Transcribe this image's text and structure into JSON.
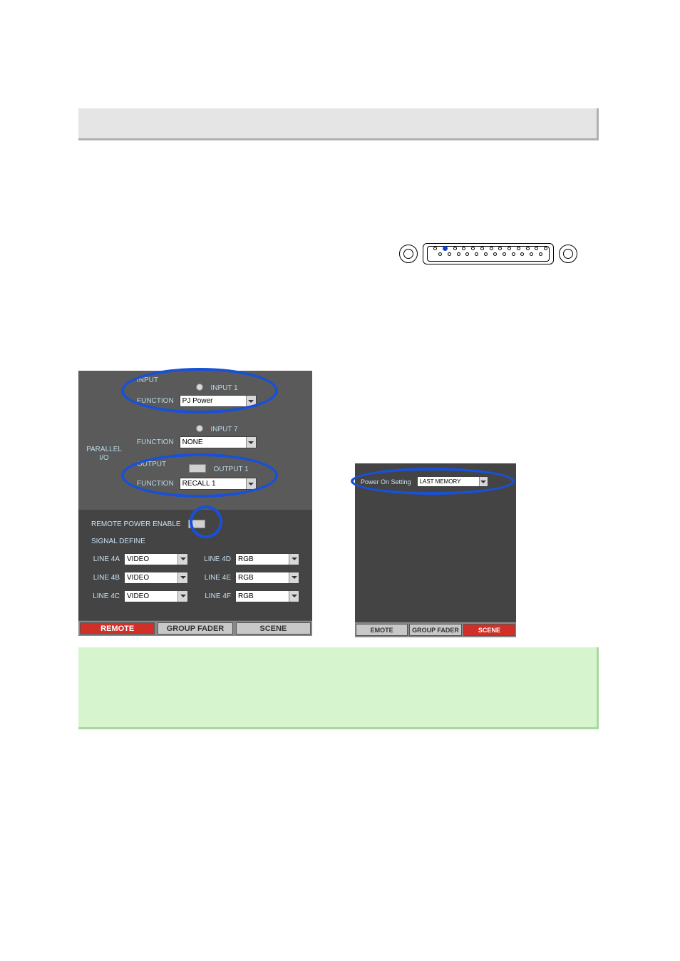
{
  "connector": {
    "top_pin_count": 13,
    "bottom_pin_count": 12,
    "highlight_pin_color": "#1040d0"
  },
  "io_panel": {
    "side_label_line1": "PARALLEL",
    "side_label_line2": "I/O",
    "input_section_label": "INPUT",
    "output_section_label": "OUTPUT",
    "function_label": "FUNCTION",
    "input1": {
      "channel_label": "INPUT 1",
      "function_value": "PJ Power"
    },
    "input2": {
      "channel_label": "INPUT 7",
      "function_value": "NONE"
    },
    "output1": {
      "channel_label": "OUTPUT 1",
      "function_value": "RECALL 1"
    }
  },
  "remote_power": {
    "label": "REMOTE POWER ENABLE"
  },
  "signal_define": {
    "heading": "SIGNAL DEFINE",
    "rows": [
      {
        "left_label": "LINE 4A",
        "left_value": "VIDEO",
        "right_label": "LINE 4D",
        "right_value": "RGB"
      },
      {
        "left_label": "LINE 4B",
        "left_value": "VIDEO",
        "right_label": "LINE 4E",
        "right_value": "RGB"
      },
      {
        "left_label": "LINE 4C",
        "left_value": "VIDEO",
        "right_label": "LINE 4F",
        "right_value": "RGB"
      }
    ]
  },
  "left_tabs": {
    "tab1": "REMOTE",
    "tab2": "GROUP FADER",
    "tab3": "SCENE"
  },
  "right_panel": {
    "power_on_label": "Power On Setting",
    "power_on_value": "LAST MEMORY",
    "tab1": "EMOTE",
    "tab2": "GROUP FADER",
    "tab3": "SCENE"
  },
  "highlight_color": "#1850d8",
  "colors": {
    "title_bg": "#e5e5e5",
    "io_bg": "#5a5a5a",
    "lower_bg": "#444444",
    "note_bg": "#d6f5ce",
    "tab_red": "#d03028",
    "label_cyan": "#b8d8e8"
  }
}
